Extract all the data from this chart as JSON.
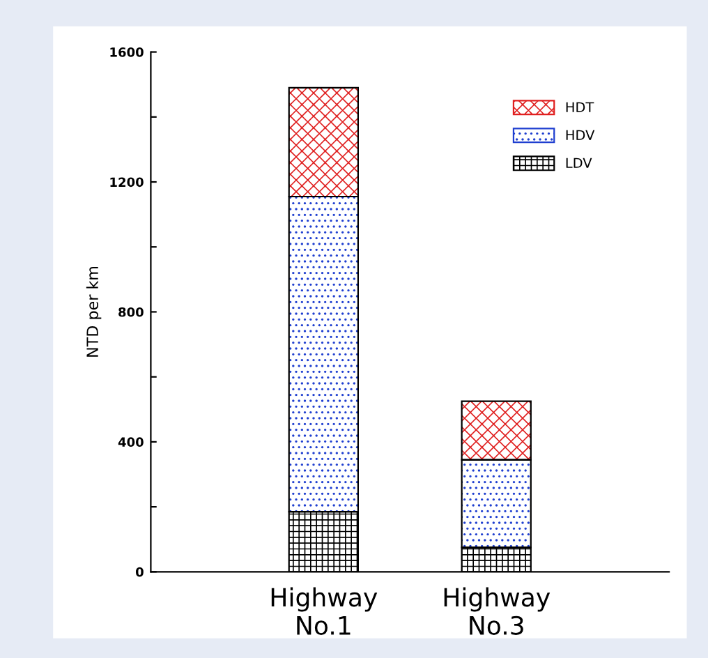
{
  "chart_data": {
    "type": "bar",
    "stacked": true,
    "ylabel": "NTD per km",
    "categories": [
      "Highway\nNo.1",
      "Highway\nNo.3"
    ],
    "series": [
      {
        "name": "LDV",
        "color": "#000000",
        "values": [
          185,
          75
        ]
      },
      {
        "name": "HDV",
        "color": "#1f3fd0",
        "values": [
          970,
          270
        ]
      },
      {
        "name": "HDT",
        "color": "#e02020",
        "values": [
          335,
          180
        ]
      }
    ],
    "ylim": [
      0,
      1600
    ],
    "yticks": [
      0,
      {
        "value": 200,
        "label": null
      },
      400,
      {
        "value": 600,
        "label": null
      },
      800,
      {
        "value": 1000,
        "label": null
      },
      1200,
      {
        "value": 1400,
        "label": null
      },
      1600
    ],
    "legend": "top right"
  }
}
